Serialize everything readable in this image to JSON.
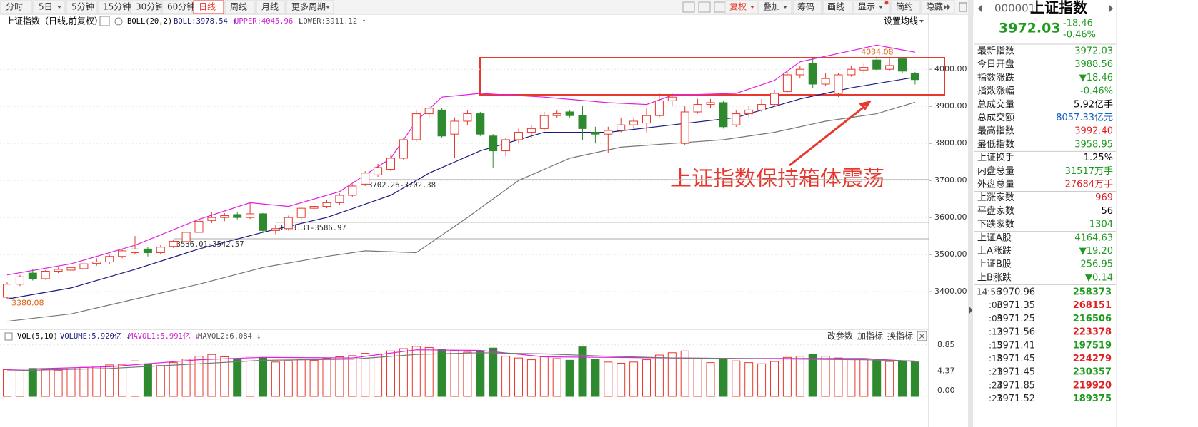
{
  "toolbar": {
    "periods": [
      "分时",
      "5日",
      "5分钟",
      "15分钟",
      "30分钟",
      "60分钟",
      "日线",
      "周线",
      "月线",
      "更多周期"
    ],
    "active_period": 6,
    "tools": [
      "复权",
      "叠加",
      "筹码",
      "画线",
      "显示",
      "简约",
      "隐藏"
    ]
  },
  "chart_data": {
    "type": "candlestick",
    "title": "上证指数（日线,前复权）",
    "indicator": "BOLL(20,2)",
    "legend_items": [
      {
        "text": "BOLL:3978.54 ↑",
        "color": "#1a1a80"
      },
      {
        "text": "UPPER:4045.96 ↓",
        "color": "#d020d0"
      },
      {
        "text": "LOWER:3911.12 ↑",
        "color": "#555555"
      }
    ],
    "settings_button": "设置均线",
    "up_color": "#e8382e",
    "down_color": "#2f8a2f",
    "open": [
      3385,
      3420,
      3450,
      3435,
      3455,
      3458,
      3462,
      3476,
      3480,
      3495,
      3505,
      3515,
      3505,
      3522,
      3535,
      3560,
      3592,
      3600,
      3608,
      3600,
      3610,
      3565,
      3570,
      3600,
      3625,
      3630,
      3640,
      3660,
      3690,
      3715,
      3730,
      3760,
      3810,
      3880,
      3890,
      3825,
      3860,
      3880,
      3820,
      3780,
      3810,
      3830,
      3840,
      3875,
      3885,
      3875,
      3830,
      3825,
      3835,
      3850,
      3855,
      3875,
      3915,
      3800,
      3885,
      3905,
      3910,
      3850,
      3880,
      3890,
      3905,
      3940,
      3985,
      4015,
      3960,
      3935,
      3985,
      3998,
      4025,
      4000,
      4028,
      3988.56
    ],
    "high": [
      3425,
      3445,
      3460,
      3458,
      3465,
      3468,
      3480,
      3490,
      3500,
      3515,
      3550,
      3520,
      3525,
      3540,
      3565,
      3595,
      3615,
      3612,
      3615,
      3640,
      3612,
      3580,
      3605,
      3630,
      3640,
      3648,
      3665,
      3690,
      3725,
      3745,
      3770,
      3815,
      3890,
      3900,
      3895,
      3870,
      3890,
      3885,
      3825,
      3815,
      3840,
      3850,
      3885,
      3890,
      3890,
      3900,
      3845,
      3845,
      3870,
      3870,
      3895,
      3935,
      3935,
      3900,
      3920,
      3920,
      3915,
      3890,
      3900,
      3920,
      3945,
      3995,
      4010,
      4030,
      3990,
      3990,
      4010,
      4015,
      4034.08,
      4030,
      4030,
      3992.4
    ],
    "low": [
      3380.08,
      3415,
      3430,
      3432,
      3450,
      3452,
      3458,
      3470,
      3475,
      3490,
      3500,
      3495,
      3500,
      3518,
      3530,
      3555,
      3585,
      3590,
      3595,
      3596,
      3560,
      3555,
      3565,
      3595,
      3618,
      3625,
      3635,
      3655,
      3685,
      3710,
      3725,
      3755,
      3805,
      3870,
      3815,
      3760,
      3850,
      3820,
      3735,
      3765,
      3800,
      3815,
      3835,
      3868,
      3870,
      3810,
      3800,
      3775,
      3830,
      3840,
      3830,
      3870,
      3900,
      3795,
      3880,
      3895,
      3840,
      3845,
      3870,
      3885,
      3900,
      3935,
      3975,
      3950,
      3955,
      3925,
      3980,
      3990,
      3995,
      3995,
      3990,
      3958.95
    ],
    "close": [
      3420,
      3440,
      3435,
      3455,
      3460,
      3465,
      3475,
      3480,
      3495,
      3510,
      3515,
      3505,
      3520,
      3536,
      3560,
      3590,
      3600,
      3605,
      3600,
      3610,
      3565,
      3570,
      3600,
      3625,
      3630,
      3640,
      3660,
      3685,
      3720,
      3735,
      3760,
      3810,
      3880,
      3895,
      3820,
      3860,
      3880,
      3825,
      3780,
      3810,
      3830,
      3840,
      3875,
      3880,
      3875,
      3840,
      3825,
      3835,
      3850,
      3860,
      3875,
      3915,
      3925,
      3885,
      3905,
      3910,
      3845,
      3880,
      3890,
      3905,
      3935,
      3985,
      4000,
      3960,
      3975,
      3985,
      4000,
      4005,
      4000,
      4010,
      3995,
      3972.03
    ],
    "ylim": [
      3306,
      4110
    ],
    "yticks": [
      {
        "value": 4000,
        "label": "4000.00"
      },
      {
        "value": 3900,
        "label": "3900.00"
      },
      {
        "value": 3800,
        "label": "3800.00"
      },
      {
        "value": 3700,
        "label": "3700.00"
      },
      {
        "value": 3600,
        "label": "3600.00"
      },
      {
        "value": 3500,
        "label": "3500.00"
      },
      {
        "value": 3400,
        "label": "3400.00"
      }
    ],
    "grid": true,
    "series": [
      {
        "color": "#e020e0",
        "x": [
          0,
          5,
          10,
          15,
          19,
          22,
          26,
          30,
          32,
          34,
          37,
          42,
          47,
          50,
          52,
          57,
          60,
          62,
          66,
          68,
          71
        ],
        "values": [
          3445,
          3475,
          3525,
          3595,
          3640,
          3630,
          3670,
          3760,
          3860,
          3925,
          3935,
          3925,
          3910,
          3905,
          3930,
          3935,
          3970,
          4020,
          4050,
          4065,
          4045.96
        ]
      },
      {
        "color": "#1a1a80",
        "x": [
          0,
          5,
          10,
          15,
          20,
          25,
          30,
          33,
          37,
          42,
          47,
          52,
          57,
          62,
          66,
          71
        ],
        "values": [
          3380,
          3410,
          3460,
          3515,
          3560,
          3600,
          3660,
          3720,
          3780,
          3830,
          3830,
          3850,
          3870,
          3920,
          3950,
          3978.54
        ]
      },
      {
        "color": "#777777",
        "x": [
          0,
          5,
          10,
          15,
          20,
          25,
          28,
          32,
          36,
          40,
          44,
          48,
          52,
          56,
          60,
          64,
          68,
          71
        ],
        "values": [
          3320,
          3340,
          3380,
          3420,
          3465,
          3495,
          3510,
          3505,
          3600,
          3700,
          3760,
          3790,
          3800,
          3810,
          3830,
          3860,
          3880,
          3911.12
        ]
      }
    ],
    "gaps": [
      {
        "label": "3536.01-3542.57",
        "low": 3536.01,
        "high": 3542.57,
        "start": 13
      },
      {
        "label": "3583.31-3586.97",
        "low": 3583.31,
        "high": 3586.97,
        "start": 21
      },
      {
        "label": "3702.26-3702.38",
        "low": 3702.26,
        "high": 3702.38,
        "start": 28
      }
    ],
    "extremes": [
      {
        "value": 4034.08,
        "index": 68
      },
      {
        "value": 3380.08,
        "index": 0
      }
    ],
    "callout": "上证指数保持箱体震荡",
    "volume": {
      "title": "VOL(5,10)",
      "legend_items": [
        {
          "text": "VOLUME:5.920亿 ↓",
          "color": "#1a1a80"
        },
        {
          "text": "MAVOL1:5.991亿 ↓",
          "color": "#d020d0"
        },
        {
          "text": "MAVOL2:6.084 ↓",
          "color": "#555555"
        }
      ],
      "buttons": [
        "改参数",
        "加指标",
        "换指标"
      ],
      "values": [
        4.6,
        4.7,
        4.8,
        4.6,
        4.5,
        4.9,
        5.0,
        5.2,
        5.4,
        5.5,
        6.1,
        5.6,
        5.3,
        5.8,
        6.4,
        6.9,
        7.2,
        6.8,
        6.4,
        6.9,
        6.7,
        5.9,
        6.1,
        6.3,
        6.2,
        6.5,
        6.8,
        7.0,
        7.4,
        7.3,
        7.8,
        8.2,
        8.6,
        8.4,
        8.1,
        7.9,
        7.6,
        7.7,
        8.3,
        6.9,
        6.6,
        6.3,
        6.8,
        6.5,
        6.2,
        8.5,
        6.4,
        5.9,
        5.7,
        5.9,
        6.3,
        7.1,
        7.5,
        7.8,
        6.5,
        5.8,
        6.4,
        6.1,
        5.8,
        5.6,
        6.0,
        6.7,
        6.9,
        7.2,
        6.9,
        6.6,
        6.3,
        6.5,
        6.2,
        6.0,
        6.1,
        5.92
      ],
      "ylim": [
        0,
        9.8
      ],
      "yticks": [
        8.85,
        4.37,
        {
          "value": 0,
          "label": "0.00"
        }
      ],
      "series": [
        {
          "color": "#e020e0",
          "x": [
            0,
            8,
            15,
            20,
            27,
            32,
            37,
            42,
            47,
            52,
            57,
            62,
            67,
            71
          ],
          "values": [
            4.6,
            5.1,
            6.3,
            6.7,
            6.6,
            8.0,
            7.9,
            6.8,
            6.7,
            6.6,
            6.5,
            6.5,
            6.5,
            5.991
          ]
        },
        {
          "color": "#777777",
          "x": [
            0,
            8,
            15,
            20,
            27,
            32,
            37,
            42,
            47,
            52,
            57,
            62,
            67,
            71
          ],
          "values": [
            4.4,
            4.8,
            5.6,
            6.2,
            6.4,
            7.2,
            7.5,
            7.3,
            6.9,
            6.6,
            6.5,
            6.4,
            6.3,
            6.084
          ]
        }
      ]
    }
  },
  "info_panel": {
    "code": "000001",
    "name": "上证指数",
    "price": "3972.03",
    "change": "-18.46",
    "change_pct": "-0.46%",
    "price_color": "#1e9a1e",
    "rows": [
      {
        "label": "最新指数",
        "value": "3972.03",
        "color": "#1e9a1e"
      },
      {
        "label": "今日开盘",
        "value": "3988.56",
        "color": "#1e9a1e"
      },
      {
        "label": "指数涨跌",
        "value": "▼18.46",
        "color": "#1e9a1e"
      },
      {
        "label": "指数涨幅",
        "value": "-0.46%",
        "color": "#1e9a1e"
      },
      {
        "label": "总成交量",
        "value": "5.92亿手",
        "color": "#000000"
      },
      {
        "label": "总成交额",
        "value": "8057.33亿元",
        "color": "#1560c0"
      },
      {
        "label": "最高指数",
        "value": "3992.40",
        "color": "#e02020"
      },
      {
        "label": "最低指数",
        "value": "3958.95",
        "color": "#1e9a1e"
      },
      {
        "label": "上证换手",
        "value": "1.25%",
        "color": "#000000"
      },
      {
        "label": "内盘总量",
        "value": "31517万手",
        "color": "#1e9a1e"
      },
      {
        "label": "外盘总量",
        "value": "27684万手",
        "color": "#e02020"
      },
      {
        "label": "上涨家数",
        "value": "969",
        "color": "#e02020"
      },
      {
        "label": "平盘家数",
        "value": "56",
        "color": "#000000"
      },
      {
        "label": "下跌家数",
        "value": "1304",
        "color": "#1e9a1e"
      },
      {
        "label": "上证A股",
        "value": "4164.63",
        "color": "#1e9a1e"
      },
      {
        "label": "上A涨跌",
        "value": "▼19.20",
        "color": "#1e9a1e"
      },
      {
        "label": "上证B股",
        "value": "256.95",
        "color": "#1e9a1e"
      },
      {
        "label": "上B涨跌",
        "value": "▼0.14",
        "color": "#1e9a1e"
      }
    ],
    "ticks": [
      {
        "time": "14:56",
        "price": "3970.96",
        "volume": "258373",
        "color": "#1e9a1e"
      },
      {
        "time": ":06",
        "price": "3971.35",
        "volume": "268151",
        "color": "#e02020"
      },
      {
        "time": ":09",
        "price": "3971.25",
        "volume": "216506",
        "color": "#1e9a1e"
      },
      {
        "time": ":12",
        "price": "3971.56",
        "volume": "223378",
        "color": "#e02020"
      },
      {
        "time": ":15",
        "price": "3971.41",
        "volume": "197519",
        "color": "#1e9a1e"
      },
      {
        "time": ":18",
        "price": "3971.45",
        "volume": "224279",
        "color": "#e02020"
      },
      {
        "time": ":21",
        "price": "3971.45",
        "volume": "230357",
        "color": "#1e9a1e"
      },
      {
        "time": ":24",
        "price": "3971.85",
        "volume": "219920",
        "color": "#e02020"
      },
      {
        "time": ":27",
        "price": "3971.52",
        "volume": "189375",
        "color": "#1e9a1e"
      }
    ]
  }
}
